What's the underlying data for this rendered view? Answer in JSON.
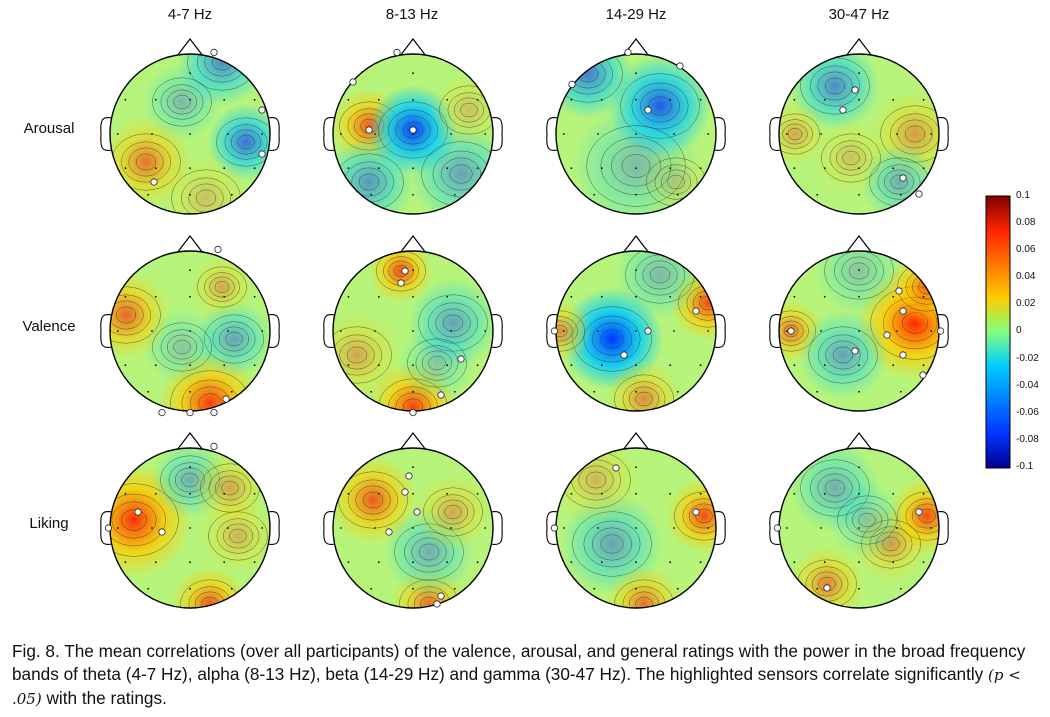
{
  "figure": {
    "columns": [
      "4-7 Hz",
      "8-13 Hz",
      "14-29 Hz",
      "30-47 Hz"
    ],
    "rows": [
      "Arousal",
      "Valence",
      "Liking"
    ],
    "colorbar": {
      "ticks": [
        "0.1",
        "0.08",
        "0.06",
        "0.04",
        "0.02",
        "0",
        "-0.02",
        "-0.04",
        "-0.06",
        "-0.08",
        "-0.1"
      ],
      "min": -0.1,
      "max": 0.1,
      "colors": {
        "max": "#7f0000",
        "high": "#ff2200",
        "mid_high": "#ffcc00",
        "zero": "#7fff7f",
        "mid_low": "#00ccff",
        "low": "#0033ff",
        "min": "#00008f"
      }
    },
    "maps": [
      {
        "row": "Arousal",
        "band": "4-7 Hz",
        "blobs": [
          {
            "u": -0.55,
            "v": 0.35,
            "r": 0.35,
            "value": 0.05
          },
          {
            "u": 0.7,
            "v": 0.1,
            "r": 0.3,
            "value": -0.055
          },
          {
            "u": 0.4,
            "v": -0.9,
            "r": 0.35,
            "value": -0.045
          },
          {
            "u": -0.1,
            "v": -0.4,
            "r": 0.3,
            "value": -0.025
          },
          {
            "u": 0.2,
            "v": 0.8,
            "r": 0.35,
            "value": 0.02
          }
        ]
      },
      {
        "row": "Arousal",
        "band": "8-13 Hz",
        "blobs": [
          {
            "u": -0.55,
            "v": -0.1,
            "r": 0.3,
            "value": 0.06
          },
          {
            "u": 0.0,
            "v": -0.05,
            "r": 0.35,
            "value": -0.075
          },
          {
            "u": -0.55,
            "v": 0.6,
            "r": 0.35,
            "value": -0.04
          },
          {
            "u": 0.6,
            "v": 0.5,
            "r": 0.4,
            "value": -0.035
          },
          {
            "u": 0.7,
            "v": -0.3,
            "r": 0.3,
            "value": 0.02
          }
        ]
      },
      {
        "row": "Arousal",
        "band": "14-29 Hz",
        "blobs": [
          {
            "u": 0.3,
            "v": -0.35,
            "r": 0.4,
            "value": -0.065
          },
          {
            "u": -0.6,
            "v": -0.75,
            "r": 0.35,
            "value": -0.05
          },
          {
            "u": 0.0,
            "v": 0.4,
            "r": 0.5,
            "value": -0.025
          },
          {
            "u": 0.5,
            "v": 0.6,
            "r": 0.3,
            "value": 0.015
          }
        ]
      },
      {
        "row": "Arousal",
        "band": "30-47 Hz",
        "blobs": [
          {
            "u": -0.3,
            "v": -0.6,
            "r": 0.35,
            "value": -0.045
          },
          {
            "u": 0.7,
            "v": 0.0,
            "r": 0.35,
            "value": 0.035
          },
          {
            "u": -0.8,
            "v": 0.0,
            "r": 0.25,
            "value": 0.03
          },
          {
            "u": 0.5,
            "v": 0.6,
            "r": 0.3,
            "value": -0.03
          },
          {
            "u": -0.1,
            "v": 0.3,
            "r": 0.3,
            "value": 0.02
          }
        ]
      },
      {
        "row": "Valence",
        "band": "4-7 Hz",
        "blobs": [
          {
            "u": -0.8,
            "v": -0.2,
            "r": 0.35,
            "value": 0.055
          },
          {
            "u": 0.25,
            "v": 0.9,
            "r": 0.4,
            "value": 0.07
          },
          {
            "u": 0.55,
            "v": 0.1,
            "r": 0.3,
            "value": -0.035
          },
          {
            "u": -0.1,
            "v": 0.2,
            "r": 0.3,
            "value": -0.02
          },
          {
            "u": 0.4,
            "v": -0.55,
            "r": 0.25,
            "value": 0.03
          }
        ]
      },
      {
        "row": "Valence",
        "band": "8-13 Hz",
        "blobs": [
          {
            "u": -0.15,
            "v": -0.75,
            "r": 0.25,
            "value": 0.065
          },
          {
            "u": 0.0,
            "v": 0.95,
            "r": 0.35,
            "value": 0.07
          },
          {
            "u": 0.5,
            "v": -0.1,
            "r": 0.35,
            "value": -0.035
          },
          {
            "u": -0.7,
            "v": 0.3,
            "r": 0.35,
            "value": 0.03
          },
          {
            "u": 0.3,
            "v": 0.4,
            "r": 0.3,
            "value": -0.02
          }
        ]
      },
      {
        "row": "Valence",
        "band": "14-29 Hz",
        "blobs": [
          {
            "u": -0.3,
            "v": 0.1,
            "r": 0.4,
            "value": -0.08
          },
          {
            "u": 0.9,
            "v": -0.35,
            "r": 0.3,
            "value": 0.065
          },
          {
            "u": -0.95,
            "v": 0.0,
            "r": 0.25,
            "value": 0.04
          },
          {
            "u": 0.1,
            "v": 0.85,
            "r": 0.3,
            "value": 0.04
          },
          {
            "u": 0.3,
            "v": -0.7,
            "r": 0.35,
            "value": -0.025
          }
        ]
      },
      {
        "row": "Valence",
        "band": "30-47 Hz",
        "blobs": [
          {
            "u": 0.7,
            "v": -0.1,
            "r": 0.45,
            "value": 0.085
          },
          {
            "u": 0.85,
            "v": -0.55,
            "r": 0.3,
            "value": 0.05
          },
          {
            "u": -0.85,
            "v": 0.0,
            "r": 0.25,
            "value": 0.05
          },
          {
            "u": -0.2,
            "v": 0.3,
            "r": 0.35,
            "value": -0.035
          },
          {
            "u": 0.0,
            "v": -0.75,
            "r": 0.35,
            "value": -0.02
          }
        ]
      },
      {
        "row": "Liking",
        "band": "4-7 Hz",
        "blobs": [
          {
            "u": -0.7,
            "v": -0.1,
            "r": 0.45,
            "value": 0.075
          },
          {
            "u": 0.25,
            "v": 0.95,
            "r": 0.3,
            "value": 0.06
          },
          {
            "u": 0.0,
            "v": -0.6,
            "r": 0.3,
            "value": -0.03
          },
          {
            "u": 0.6,
            "v": 0.1,
            "r": 0.3,
            "value": 0.025
          },
          {
            "u": 0.5,
            "v": -0.5,
            "r": 0.3,
            "value": 0.03
          }
        ]
      },
      {
        "row": "Liking",
        "band": "8-13 Hz",
        "blobs": [
          {
            "u": -0.5,
            "v": -0.35,
            "r": 0.35,
            "value": 0.06
          },
          {
            "u": 0.2,
            "v": 0.95,
            "r": 0.3,
            "value": 0.05
          },
          {
            "u": 0.2,
            "v": 0.3,
            "r": 0.35,
            "value": -0.03
          },
          {
            "u": 0.5,
            "v": -0.2,
            "r": 0.3,
            "value": 0.03
          }
        ]
      },
      {
        "row": "Liking",
        "band": "14-29 Hz",
        "blobs": [
          {
            "u": 0.85,
            "v": -0.15,
            "r": 0.3,
            "value": 0.065
          },
          {
            "u": -0.3,
            "v": 0.2,
            "r": 0.4,
            "value": -0.035
          },
          {
            "u": 0.1,
            "v": 0.95,
            "r": 0.3,
            "value": 0.05
          },
          {
            "u": -0.5,
            "v": -0.6,
            "r": 0.35,
            "value": 0.025
          }
        ]
      },
      {
        "row": "Liking",
        "band": "30-47 Hz",
        "blobs": [
          {
            "u": 0.85,
            "v": -0.15,
            "r": 0.3,
            "value": 0.065
          },
          {
            "u": -0.4,
            "v": 0.7,
            "r": 0.3,
            "value": 0.045
          },
          {
            "u": 0.4,
            "v": 0.2,
            "r": 0.3,
            "value": 0.035
          },
          {
            "u": -0.3,
            "v": -0.5,
            "r": 0.35,
            "value": -0.03
          },
          {
            "u": 0.1,
            "v": -0.1,
            "r": 0.3,
            "value": -0.02
          }
        ]
      }
    ],
    "significant_sensors": [
      {
        "row": "Arousal",
        "band": "4-7 Hz",
        "sensors": [
          {
            "u": 0.3,
            "v": -1.02
          },
          {
            "u": 0.9,
            "v": -0.3
          },
          {
            "u": 0.9,
            "v": 0.25
          },
          {
            "u": -0.45,
            "v": 0.6
          }
        ]
      },
      {
        "row": "Arousal",
        "band": "8-13 Hz",
        "sensors": [
          {
            "u": -0.75,
            "v": -0.65
          },
          {
            "u": -0.2,
            "v": -1.02
          },
          {
            "u": -0.55,
            "v": -0.05
          },
          {
            "u": 0.0,
            "v": -0.05
          }
        ]
      },
      {
        "row": "Arousal",
        "band": "14-29 Hz",
        "sensors": [
          {
            "u": -0.8,
            "v": -0.62
          },
          {
            "u": -0.1,
            "v": -1.02
          },
          {
            "u": 0.55,
            "v": -0.85
          },
          {
            "u": 0.15,
            "v": -0.3
          }
        ]
      },
      {
        "row": "Arousal",
        "band": "30-47 Hz",
        "sensors": [
          {
            "u": -0.05,
            "v": -0.55
          },
          {
            "u": -0.2,
            "v": -0.3
          },
          {
            "u": 0.55,
            "v": 0.55
          },
          {
            "u": 0.75,
            "v": 0.75
          }
        ]
      },
      {
        "row": "Valence",
        "band": "4-7 Hz",
        "sensors": [
          {
            "u": 0.35,
            "v": -1.02
          },
          {
            "u": -0.35,
            "v": 1.02
          },
          {
            "u": 0.0,
            "v": 1.02
          },
          {
            "u": 0.3,
            "v": 1.02
          },
          {
            "u": 0.45,
            "v": 0.85
          }
        ]
      },
      {
        "row": "Valence",
        "band": "8-13 Hz",
        "sensors": [
          {
            "u": -0.1,
            "v": -0.75
          },
          {
            "u": -0.15,
            "v": -0.6
          },
          {
            "u": 0.6,
            "v": 0.35
          },
          {
            "u": 0.0,
            "v": 1.02
          },
          {
            "u": 0.35,
            "v": 0.8
          }
        ]
      },
      {
        "row": "Valence",
        "band": "14-29 Hz",
        "sensors": [
          {
            "u": 0.75,
            "v": -0.25
          },
          {
            "u": -1.02,
            "v": 0.0
          },
          {
            "u": 0.15,
            "v": 0.0
          },
          {
            "u": -0.15,
            "v": 0.3
          }
        ]
      },
      {
        "row": "Valence",
        "band": "30-47 Hz",
        "sensors": [
          {
            "u": 0.5,
            "v": -0.5
          },
          {
            "u": 0.55,
            "v": -0.25
          },
          {
            "u": 1.02,
            "v": 0.0
          },
          {
            "u": -0.85,
            "v": 0.0
          },
          {
            "u": 0.35,
            "v": 0.05
          },
          {
            "u": -0.05,
            "v": 0.25
          },
          {
            "u": 0.55,
            "v": 0.3
          },
          {
            "u": 0.8,
            "v": 0.55
          }
        ]
      },
      {
        "row": "Liking",
        "band": "4-7 Hz",
        "sensors": [
          {
            "u": 0.3,
            "v": -1.02
          },
          {
            "u": -0.65,
            "v": -0.2
          },
          {
            "u": -0.35,
            "v": 0.05
          },
          {
            "u": -1.02,
            "v": 0.0
          }
        ]
      },
      {
        "row": "Liking",
        "band": "8-13 Hz",
        "sensors": [
          {
            "u": -0.05,
            "v": -0.65
          },
          {
            "u": -0.1,
            "v": -0.45
          },
          {
            "u": 0.05,
            "v": -0.2
          },
          {
            "u": -0.3,
            "v": 0.05
          },
          {
            "u": 0.35,
            "v": 0.85
          },
          {
            "u": 0.3,
            "v": 0.95
          }
        ]
      },
      {
        "row": "Liking",
        "band": "14-29 Hz",
        "sensors": [
          {
            "u": -0.25,
            "v": -0.75
          },
          {
            "u": 0.75,
            "v": -0.2
          },
          {
            "u": -1.02,
            "v": 0.0
          }
        ]
      },
      {
        "row": "Liking",
        "band": "30-47 Hz",
        "sensors": [
          {
            "u": 0.75,
            "v": -0.2
          },
          {
            "u": -1.02,
            "v": 0.0
          },
          {
            "u": -0.4,
            "v": 0.75
          }
        ]
      }
    ]
  },
  "caption": {
    "part1": "Fig. 8.  The mean correlations (over all participants) of the valence, arousal, and general ratings with the power in the broad frequency bands of theta (4-7 Hz), alpha (8-13 Hz), beta (14-29 Hz) and gamma (30-47 Hz). The highlighted sensors correlate significantly ",
    "math": "(p < .05)",
    "part2": " with the ratings."
  }
}
